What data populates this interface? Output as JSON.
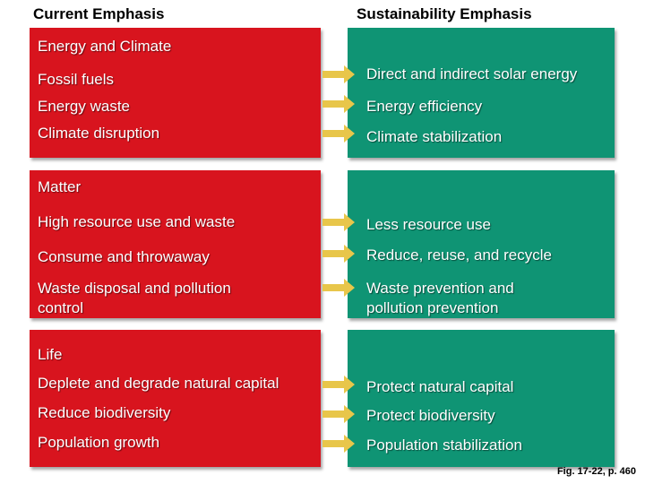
{
  "headers": {
    "current": "Current Emphasis",
    "sustainability": "Sustainability Emphasis"
  },
  "sections": [
    {
      "title": "Energy and Climate",
      "rows": [
        {
          "current": "Fossil fuels",
          "sustainable": "Direct and indirect solar energy"
        },
        {
          "current": "Energy waste",
          "sustainable": "Energy efficiency"
        },
        {
          "current": "Climate disruption",
          "sustainable": "Climate stabilization"
        }
      ]
    },
    {
      "title": "Matter",
      "rows": [
        {
          "current": "High resource use and waste",
          "sustainable": "Less resource use"
        },
        {
          "current": "Consume and throwaway",
          "sustainable": "Reduce, reuse, and recycle"
        },
        {
          "current_line1": "Waste disposal and pollution",
          "current_line2": "control",
          "sustainable_line1": "Waste prevention and",
          "sustainable_line2": "pollution prevention"
        }
      ]
    },
    {
      "title": "Life",
      "rows": [
        {
          "current": "Deplete and degrade natural capital",
          "sustainable": "Protect natural capital"
        },
        {
          "current": "Reduce biodiversity",
          "sustainable": "Protect biodiversity"
        },
        {
          "current": "Population growth",
          "sustainable": "Population stabilization"
        }
      ]
    }
  ],
  "caption": "Fig. 17-22, p. 460",
  "colors": {
    "current": "#d8141e",
    "sustainable": "#0f9474",
    "arrow": "#e8c64a"
  }
}
